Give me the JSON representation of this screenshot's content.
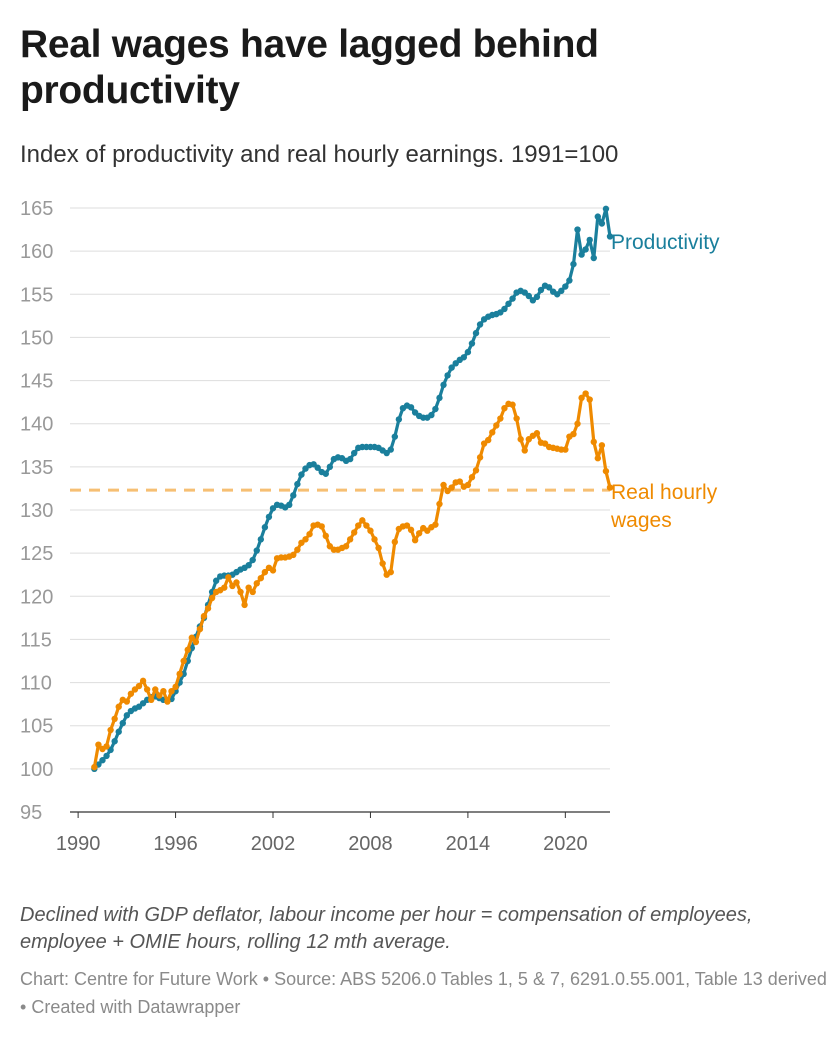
{
  "header": {
    "title": "Real wages have lagged behind productivity",
    "subtitle": "Index of productivity and real hourly earnings. 1991=100"
  },
  "notes": "Declined with GDP deflator, labour income per hour = compensation of employees, employee + OMIE hours, rolling 12 mth average.",
  "footer": {
    "credit": "Chart: Centre for Future Work",
    "source": "Source: ABS 5206.0 Tables 1, 5 & 7, 6291.0.55.001, Table 13 derived",
    "made_with": "Created with Datawrapper",
    "separator": "•"
  },
  "chart_data": {
    "type": "line",
    "title": "Real wages have lagged behind productivity",
    "subtitle": "Index of productivity and real hourly earnings. 1991=100",
    "xlabel": "",
    "ylabel": "",
    "xlim": [
      1989.5,
      2022.75
    ],
    "ylim": [
      95,
      165
    ],
    "x_ticks": [
      1990,
      1996,
      2002,
      2008,
      2014,
      2020
    ],
    "y_ticks": [
      95,
      100,
      105,
      110,
      115,
      120,
      125,
      130,
      135,
      140,
      145,
      150,
      155,
      160,
      165
    ],
    "grid": true,
    "reference_line": {
      "y": 132.3,
      "series": "Real hourly wages",
      "style": "dashed"
    },
    "series": [
      {
        "name": "Productivity",
        "label": "Productivity",
        "color": "#1a7f9c",
        "points": [
          [
            1991.0,
            100.0
          ],
          [
            1991.25,
            100.5
          ],
          [
            1991.5,
            101.0
          ],
          [
            1991.75,
            101.5
          ],
          [
            1992.0,
            102.2
          ],
          [
            1992.25,
            103.2
          ],
          [
            1992.5,
            104.3
          ],
          [
            1992.75,
            105.3
          ],
          [
            1993.0,
            106.2
          ],
          [
            1993.25,
            106.7
          ],
          [
            1993.5,
            107.0
          ],
          [
            1993.75,
            107.2
          ],
          [
            1994.0,
            107.6
          ],
          [
            1994.25,
            108.0
          ],
          [
            1994.5,
            108.3
          ],
          [
            1994.75,
            108.4
          ],
          [
            1995.0,
            108.2
          ],
          [
            1995.25,
            108.0
          ],
          [
            1995.5,
            107.9
          ],
          [
            1995.75,
            108.1
          ],
          [
            1996.0,
            109.0
          ],
          [
            1996.25,
            110.0
          ],
          [
            1996.5,
            111.0
          ],
          [
            1996.75,
            112.5
          ],
          [
            1997.0,
            114.0
          ],
          [
            1997.25,
            115.3
          ],
          [
            1997.5,
            116.5
          ],
          [
            1997.75,
            117.5
          ],
          [
            1998.0,
            119.0
          ],
          [
            1998.25,
            120.5
          ],
          [
            1998.5,
            121.8
          ],
          [
            1998.75,
            122.3
          ],
          [
            1999.0,
            122.4
          ],
          [
            1999.25,
            122.4
          ],
          [
            1999.5,
            122.5
          ],
          [
            1999.75,
            122.8
          ],
          [
            2000.0,
            123.1
          ],
          [
            2000.25,
            123.3
          ],
          [
            2000.5,
            123.6
          ],
          [
            2000.75,
            124.2
          ],
          [
            2001.0,
            125.3
          ],
          [
            2001.25,
            126.6
          ],
          [
            2001.5,
            128.0
          ],
          [
            2001.75,
            129.2
          ],
          [
            2002.0,
            130.2
          ],
          [
            2002.25,
            130.6
          ],
          [
            2002.5,
            130.5
          ],
          [
            2002.75,
            130.3
          ],
          [
            2003.0,
            130.6
          ],
          [
            2003.25,
            131.7
          ],
          [
            2003.5,
            133.0
          ],
          [
            2003.75,
            134.1
          ],
          [
            2004.0,
            134.8
          ],
          [
            2004.25,
            135.2
          ],
          [
            2004.5,
            135.3
          ],
          [
            2004.75,
            134.9
          ],
          [
            2005.0,
            134.4
          ],
          [
            2005.25,
            134.2
          ],
          [
            2005.5,
            135.0
          ],
          [
            2005.75,
            135.9
          ],
          [
            2006.0,
            136.1
          ],
          [
            2006.25,
            136.0
          ],
          [
            2006.5,
            135.7
          ],
          [
            2006.75,
            135.9
          ],
          [
            2007.0,
            136.6
          ],
          [
            2007.25,
            137.2
          ],
          [
            2007.5,
            137.3
          ],
          [
            2007.75,
            137.3
          ],
          [
            2008.0,
            137.3
          ],
          [
            2008.25,
            137.3
          ],
          [
            2008.5,
            137.2
          ],
          [
            2008.75,
            136.9
          ],
          [
            2009.0,
            136.6
          ],
          [
            2009.25,
            137.0
          ],
          [
            2009.5,
            138.5
          ],
          [
            2009.75,
            140.5
          ],
          [
            2010.0,
            141.8
          ],
          [
            2010.25,
            142.1
          ],
          [
            2010.5,
            141.9
          ],
          [
            2010.75,
            141.3
          ],
          [
            2011.0,
            140.9
          ],
          [
            2011.25,
            140.7
          ],
          [
            2011.5,
            140.7
          ],
          [
            2011.75,
            141.0
          ],
          [
            2012.0,
            141.7
          ],
          [
            2012.25,
            143.0
          ],
          [
            2012.5,
            144.5
          ],
          [
            2012.75,
            145.6
          ],
          [
            2013.0,
            146.5
          ],
          [
            2013.25,
            147.0
          ],
          [
            2013.5,
            147.4
          ],
          [
            2013.75,
            147.7
          ],
          [
            2014.0,
            148.3
          ],
          [
            2014.25,
            149.3
          ],
          [
            2014.5,
            150.5
          ],
          [
            2014.75,
            151.5
          ],
          [
            2015.0,
            152.1
          ],
          [
            2015.25,
            152.4
          ],
          [
            2015.5,
            152.6
          ],
          [
            2015.75,
            152.7
          ],
          [
            2016.0,
            152.9
          ],
          [
            2016.25,
            153.3
          ],
          [
            2016.5,
            153.9
          ],
          [
            2016.75,
            154.5
          ],
          [
            2017.0,
            155.2
          ],
          [
            2017.25,
            155.4
          ],
          [
            2017.5,
            155.2
          ],
          [
            2017.75,
            154.8
          ],
          [
            2018.0,
            154.3
          ],
          [
            2018.25,
            154.7
          ],
          [
            2018.5,
            155.5
          ],
          [
            2018.75,
            156.0
          ],
          [
            2019.0,
            155.8
          ],
          [
            2019.25,
            155.3
          ],
          [
            2019.5,
            155.0
          ],
          [
            2019.75,
            155.4
          ],
          [
            2020.0,
            155.9
          ],
          [
            2020.25,
            156.6
          ],
          [
            2020.5,
            158.5
          ],
          [
            2020.75,
            162.5
          ],
          [
            2021.0,
            159.6
          ],
          [
            2021.25,
            160.2
          ],
          [
            2021.5,
            161.3
          ],
          [
            2021.75,
            159.2
          ],
          [
            2022.0,
            164.0
          ],
          [
            2022.25,
            163.2
          ],
          [
            2022.5,
            164.9
          ],
          [
            2022.75,
            161.7
          ]
        ]
      },
      {
        "name": "Real hourly wages",
        "label": "Real hourly wages",
        "color": "#ef8a00",
        "points": [
          [
            1991.0,
            100.2
          ],
          [
            1991.25,
            102.8
          ],
          [
            1991.5,
            102.3
          ],
          [
            1991.75,
            102.6
          ],
          [
            1992.0,
            104.5
          ],
          [
            1992.25,
            105.8
          ],
          [
            1992.5,
            107.2
          ],
          [
            1992.75,
            108.0
          ],
          [
            1993.0,
            107.8
          ],
          [
            1993.25,
            108.7
          ],
          [
            1993.5,
            109.2
          ],
          [
            1993.75,
            109.6
          ],
          [
            1994.0,
            110.2
          ],
          [
            1994.25,
            109.2
          ],
          [
            1994.5,
            108.0
          ],
          [
            1994.75,
            109.2
          ],
          [
            1995.0,
            108.5
          ],
          [
            1995.25,
            109.0
          ],
          [
            1995.5,
            107.8
          ],
          [
            1995.75,
            109.0
          ],
          [
            1996.0,
            109.5
          ],
          [
            1996.25,
            111.0
          ],
          [
            1996.5,
            112.5
          ],
          [
            1996.75,
            113.8
          ],
          [
            1997.0,
            115.2
          ],
          [
            1997.25,
            114.7
          ],
          [
            1997.5,
            116.2
          ],
          [
            1997.75,
            117.7
          ],
          [
            1998.0,
            118.6
          ],
          [
            1998.25,
            119.8
          ],
          [
            1998.5,
            120.5
          ],
          [
            1998.75,
            120.7
          ],
          [
            1999.0,
            121.0
          ],
          [
            1999.25,
            122.2
          ],
          [
            1999.5,
            121.2
          ],
          [
            1999.75,
            121.6
          ],
          [
            2000.0,
            120.5
          ],
          [
            2000.25,
            119.0
          ],
          [
            2000.5,
            121.0
          ],
          [
            2000.75,
            120.5
          ],
          [
            2001.0,
            121.5
          ],
          [
            2001.25,
            122.1
          ],
          [
            2001.5,
            122.8
          ],
          [
            2001.75,
            123.3
          ],
          [
            2002.0,
            123.0
          ],
          [
            2002.25,
            124.4
          ],
          [
            2002.5,
            124.5
          ],
          [
            2002.75,
            124.5
          ],
          [
            2003.0,
            124.6
          ],
          [
            2003.25,
            124.8
          ],
          [
            2003.5,
            125.4
          ],
          [
            2003.75,
            126.2
          ],
          [
            2004.0,
            126.6
          ],
          [
            2004.25,
            127.2
          ],
          [
            2004.5,
            128.2
          ],
          [
            2004.75,
            128.3
          ],
          [
            2005.0,
            128.1
          ],
          [
            2005.25,
            127.0
          ],
          [
            2005.5,
            125.8
          ],
          [
            2005.75,
            125.4
          ],
          [
            2006.0,
            125.4
          ],
          [
            2006.25,
            125.6
          ],
          [
            2006.5,
            125.8
          ],
          [
            2006.75,
            126.6
          ],
          [
            2007.0,
            127.4
          ],
          [
            2007.25,
            128.2
          ],
          [
            2007.5,
            128.8
          ],
          [
            2007.75,
            128.2
          ],
          [
            2008.0,
            127.6
          ],
          [
            2008.25,
            126.6
          ],
          [
            2008.5,
            125.6
          ],
          [
            2008.75,
            123.8
          ],
          [
            2009.0,
            122.5
          ],
          [
            2009.25,
            122.8
          ],
          [
            2009.5,
            126.3
          ],
          [
            2009.75,
            127.8
          ],
          [
            2010.0,
            128.1
          ],
          [
            2010.25,
            128.2
          ],
          [
            2010.5,
            127.7
          ],
          [
            2010.75,
            126.5
          ],
          [
            2011.0,
            127.3
          ],
          [
            2011.25,
            127.9
          ],
          [
            2011.5,
            127.6
          ],
          [
            2011.75,
            128.0
          ],
          [
            2012.0,
            128.3
          ],
          [
            2012.25,
            130.7
          ],
          [
            2012.5,
            132.9
          ],
          [
            2012.75,
            132.2
          ],
          [
            2013.0,
            132.6
          ],
          [
            2013.25,
            133.2
          ],
          [
            2013.5,
            133.3
          ],
          [
            2013.75,
            132.7
          ],
          [
            2014.0,
            132.9
          ],
          [
            2014.25,
            133.8
          ],
          [
            2014.5,
            134.6
          ],
          [
            2014.75,
            136.1
          ],
          [
            2015.0,
            137.7
          ],
          [
            2015.25,
            138.1
          ],
          [
            2015.5,
            139.0
          ],
          [
            2015.75,
            139.8
          ],
          [
            2016.0,
            140.6
          ],
          [
            2016.25,
            141.8
          ],
          [
            2016.5,
            142.3
          ],
          [
            2016.75,
            142.2
          ],
          [
            2017.0,
            140.6
          ],
          [
            2017.25,
            138.2
          ],
          [
            2017.5,
            136.9
          ],
          [
            2017.75,
            138.2
          ],
          [
            2018.0,
            138.6
          ],
          [
            2018.25,
            138.9
          ],
          [
            2018.5,
            137.8
          ],
          [
            2018.75,
            137.7
          ],
          [
            2019.0,
            137.3
          ],
          [
            2019.25,
            137.2
          ],
          [
            2019.5,
            137.1
          ],
          [
            2019.75,
            137.0
          ],
          [
            2020.0,
            137.0
          ],
          [
            2020.25,
            138.5
          ],
          [
            2020.5,
            138.8
          ],
          [
            2020.75,
            140.0
          ],
          [
            2021.0,
            143.0
          ],
          [
            2021.25,
            143.5
          ],
          [
            2021.5,
            142.8
          ],
          [
            2021.75,
            137.9
          ],
          [
            2022.0,
            136.0
          ],
          [
            2022.25,
            137.5
          ],
          [
            2022.5,
            134.5
          ],
          [
            2022.75,
            132.6
          ]
        ]
      }
    ]
  }
}
